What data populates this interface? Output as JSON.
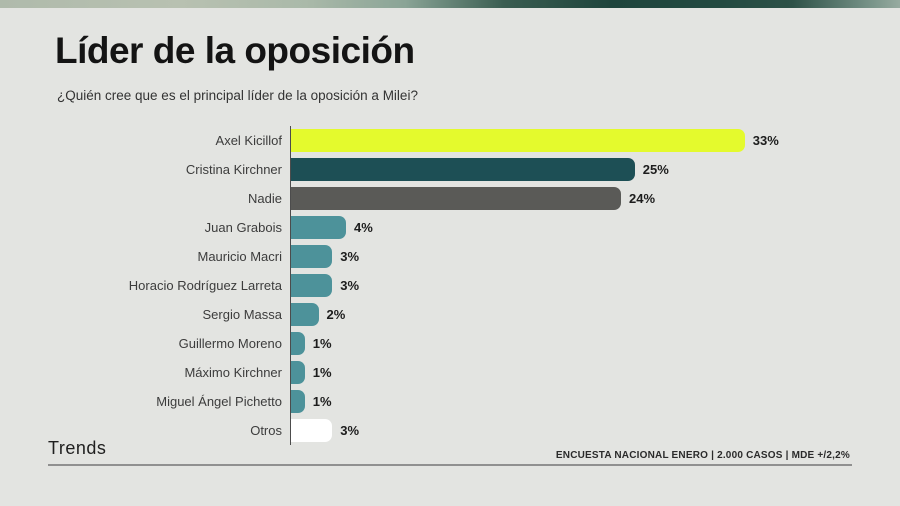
{
  "header": {
    "title": "Líder de la oposición",
    "subtitle": "¿Quién cree que es el principal líder de la oposición a Milei?"
  },
  "footer": {
    "brand": "Trends",
    "note": "ENCUESTA NACIONAL ENERO | 2.000 CASOS | MDE +/2,2%"
  },
  "colors": {
    "highlight_yellow": "#e4fa2d",
    "dark_teal": "#1d4f55",
    "neutral_gray": "#5a5a57",
    "teal": "#4d929a",
    "white": "#ffffff",
    "background": "#e3e4e1"
  },
  "chart_data": {
    "type": "bar",
    "orientation": "horizontal",
    "title": "Líder de la oposición",
    "question": "¿Quién cree que es el principal líder de la oposición a Milei?",
    "unit": "%",
    "xlim": [
      0,
      35
    ],
    "grid": false,
    "legend": false,
    "categories": [
      "Axel Kicillof",
      "Cristina Kirchner",
      "Nadie",
      "Juan Grabois",
      "Mauricio Macri",
      "Horacio Rodríguez Larreta",
      "Sergio Massa",
      "Guillermo Moreno",
      "Máximo Kirchner",
      "Miguel Ángel Pichetto",
      "Otros"
    ],
    "values": [
      33,
      25,
      24,
      4,
      3,
      3,
      2,
      1,
      1,
      1,
      3
    ],
    "value_labels": [
      "33%",
      "25%",
      "24%",
      "4%",
      "3%",
      "3%",
      "2%",
      "1%",
      "1%",
      "1%",
      "3%"
    ],
    "bar_colors": [
      "#e4fa2d",
      "#1d4f55",
      "#5a5a57",
      "#4d929a",
      "#4d929a",
      "#4d929a",
      "#4d929a",
      "#4d929a",
      "#4d929a",
      "#4d929a",
      "#ffffff"
    ],
    "source_note": "ENCUESTA NACIONAL ENERO | 2.000 CASOS | MDE +/2,2%"
  }
}
